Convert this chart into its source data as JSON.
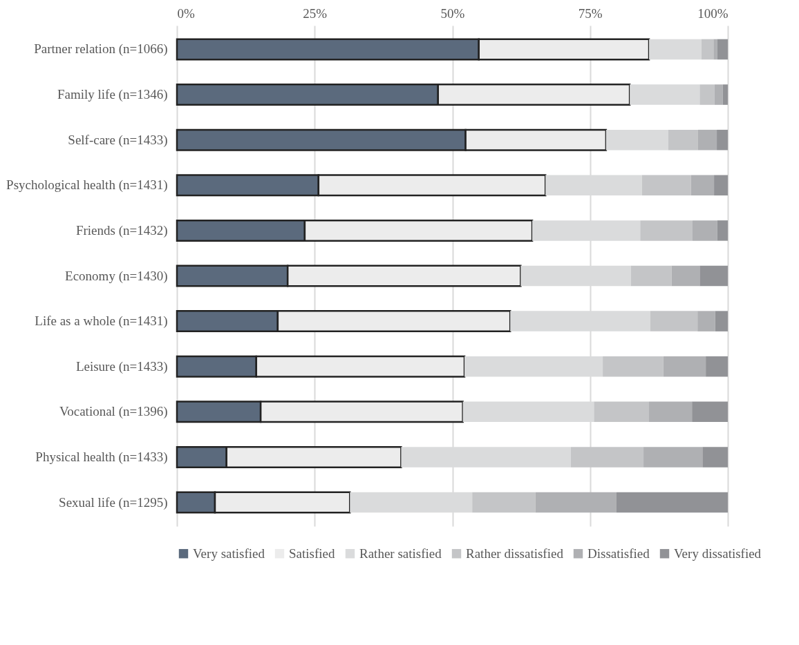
{
  "chart_data": {
    "type": "bar",
    "orientation": "horizontal",
    "stacked": true,
    "categories": [
      "Partner relation (n=1066)",
      "Family life (n=1346)",
      "Self-care (n=1433)",
      "Psychological health (n=1431)",
      "Friends (n=1432)",
      "Economy (n=1430)",
      "Life as a whole (n=1431)",
      "Leisure (n=1433)",
      "Vocational (n=1396)",
      "Physical health (n=1433)",
      "Sexual life (n=1295)"
    ],
    "series": [
      {
        "name": "Very satisfied",
        "color": "#5b6a7d",
        "values": [
          54.8,
          47.4,
          52.4,
          25.7,
          23.2,
          20.1,
          18.3,
          14.4,
          15.2,
          9.0,
          6.9
        ]
      },
      {
        "name": "Satisfied",
        "color": "#ececec",
        "values": [
          30.9,
          34.8,
          25.5,
          41.2,
          41.3,
          42.3,
          42.2,
          37.8,
          36.7,
          31.7,
          24.5
        ]
      },
      {
        "name": "Rather satisfied",
        "color": "#dadbdc",
        "values": [
          9.5,
          12.7,
          11.3,
          17.5,
          19.6,
          20.0,
          25.4,
          25.1,
          23.8,
          30.8,
          22.2
        ]
      },
      {
        "name": "Rather dissatisfied",
        "color": "#c4c5c7",
        "values": [
          2.2,
          2.7,
          5.4,
          8.9,
          9.5,
          7.4,
          8.6,
          11.0,
          10.0,
          13.2,
          11.5
        ]
      },
      {
        "name": "Dissatisfied",
        "color": "#afb0b3",
        "values": [
          0.7,
          1.5,
          3.4,
          4.2,
          4.5,
          5.1,
          3.2,
          7.7,
          7.8,
          10.7,
          14.7
        ]
      },
      {
        "name": "Very dissatisfied",
        "color": "#919296",
        "values": [
          1.9,
          0.9,
          2.0,
          2.5,
          1.9,
          5.1,
          2.3,
          4.0,
          6.5,
          4.6,
          20.2
        ]
      }
    ],
    "xlim": [
      0,
      100
    ],
    "xticks": [
      {
        "value": 0,
        "label": "0%"
      },
      {
        "value": 25,
        "label": "25%"
      },
      {
        "value": 50,
        "label": "50%"
      },
      {
        "value": 75,
        "label": "75%"
      },
      {
        "value": 100,
        "label": "100%"
      }
    ],
    "grid": "x",
    "legend": "bottom"
  }
}
